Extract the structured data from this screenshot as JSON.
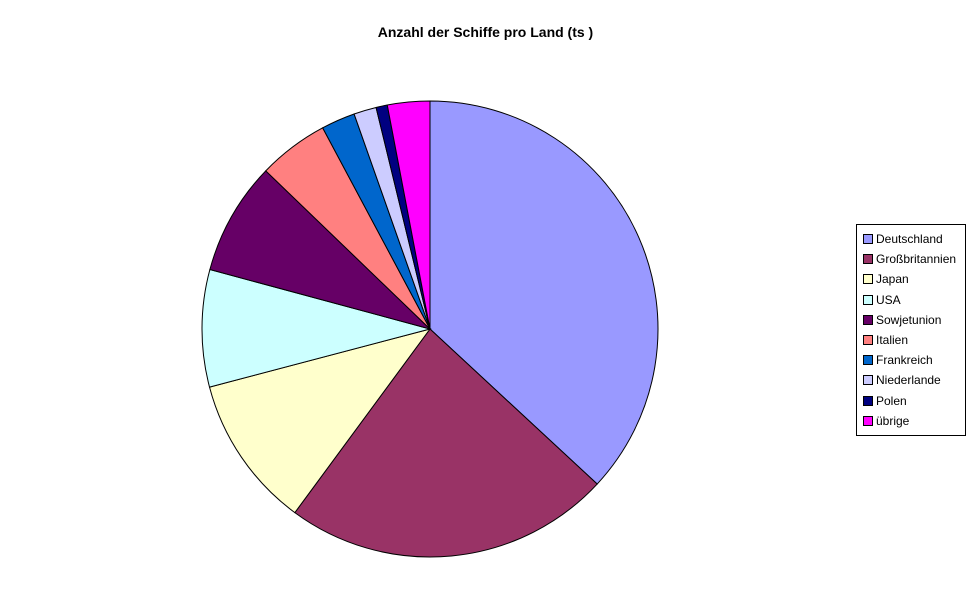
{
  "title": "Anzahl der Schiffe pro Land (ts )",
  "chart_data": {
    "type": "pie",
    "title": "Anzahl der Schiffe pro Land (ts )",
    "categories": [
      "Deutschland",
      "Großbritannien",
      "Japan",
      "USA",
      "Sowjetunion",
      "Italien",
      "Frankreich",
      "Niederlande",
      "Polen",
      "übrige"
    ],
    "values_percent": [
      36.9,
      23.2,
      10.8,
      8.3,
      8.0,
      5.0,
      2.4,
      1.6,
      0.8,
      3.0
    ],
    "colors": [
      "#9999FF",
      "#993366",
      "#FFFFCC",
      "#CCFFFF",
      "#660066",
      "#FF8080",
      "#0066CC",
      "#CCCCFF",
      "#000080",
      "#FF00FF"
    ],
    "slice_border_color": "#000000",
    "start_angle_deg": 0,
    "direction": "clockwise",
    "legend_position": "right",
    "legend_border": true,
    "background": "#FFFFFF",
    "layout": {
      "center": [
        430,
        329
      ],
      "radius": 228
    }
  }
}
